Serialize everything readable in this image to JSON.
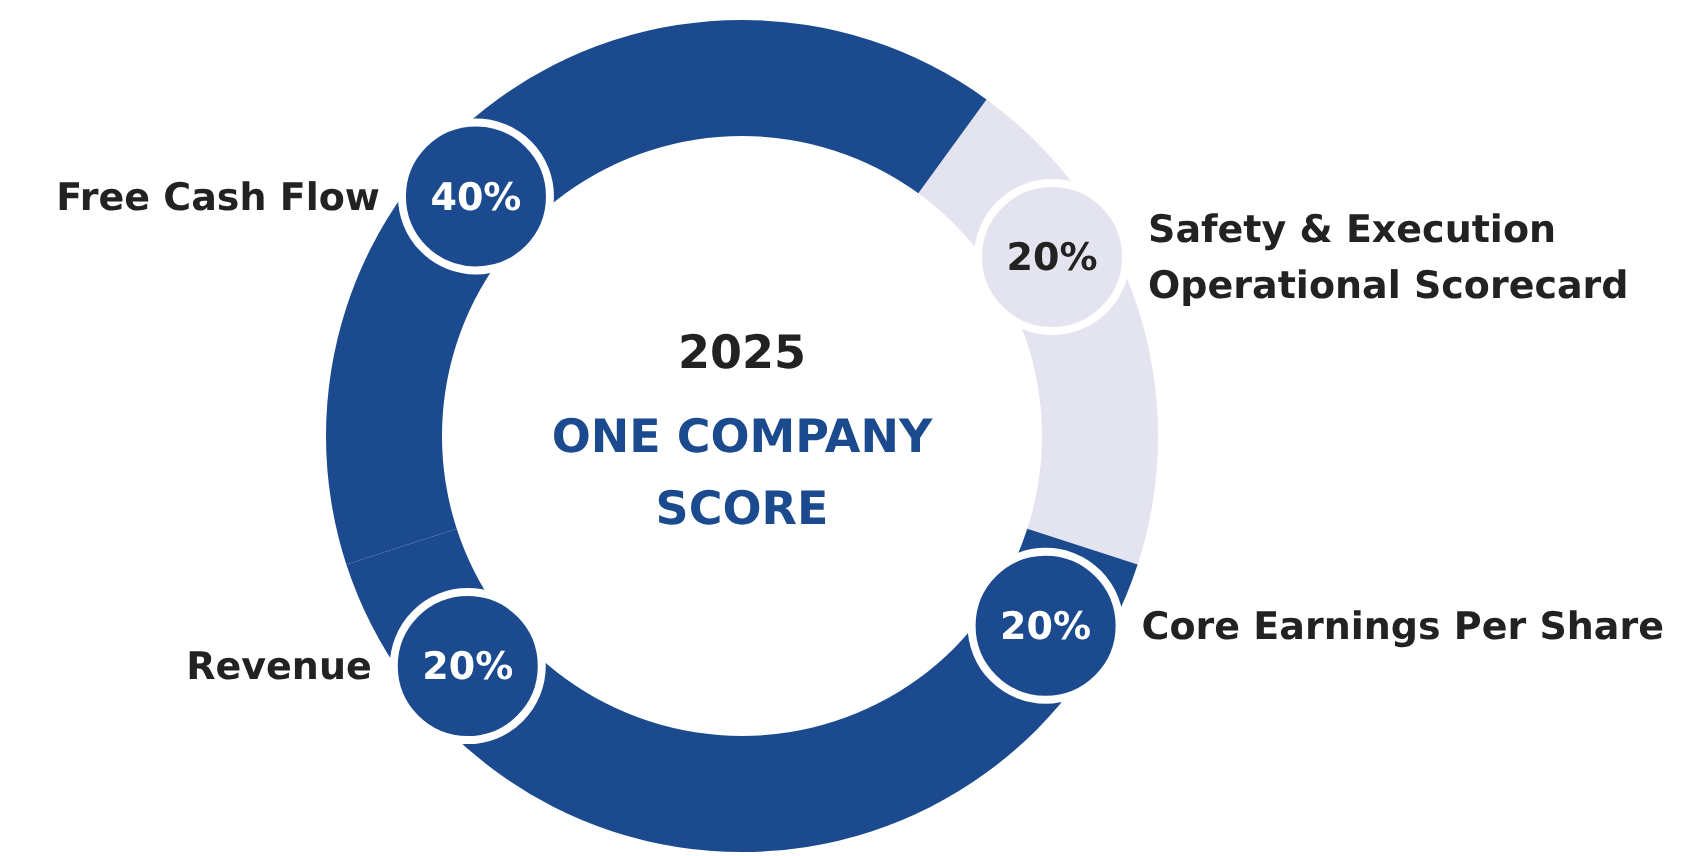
{
  "chart_data": {
    "type": "donut",
    "title": "2025",
    "subtitle": "ONE COMPANY SCORE",
    "categories": [
      "Safety & Execution Operational Scorecard",
      "Core Earnings Per Share",
      "Revenue",
      "Free Cash Flow"
    ],
    "values": [
      20,
      20,
      20,
      40
    ],
    "colors": [
      "#e3e4f0",
      "#1b4a8e",
      "#1b4a8e",
      "#1b4a8e"
    ],
    "value_labels": [
      "20%",
      "20%",
      "20%",
      "40%"
    ]
  }
}
